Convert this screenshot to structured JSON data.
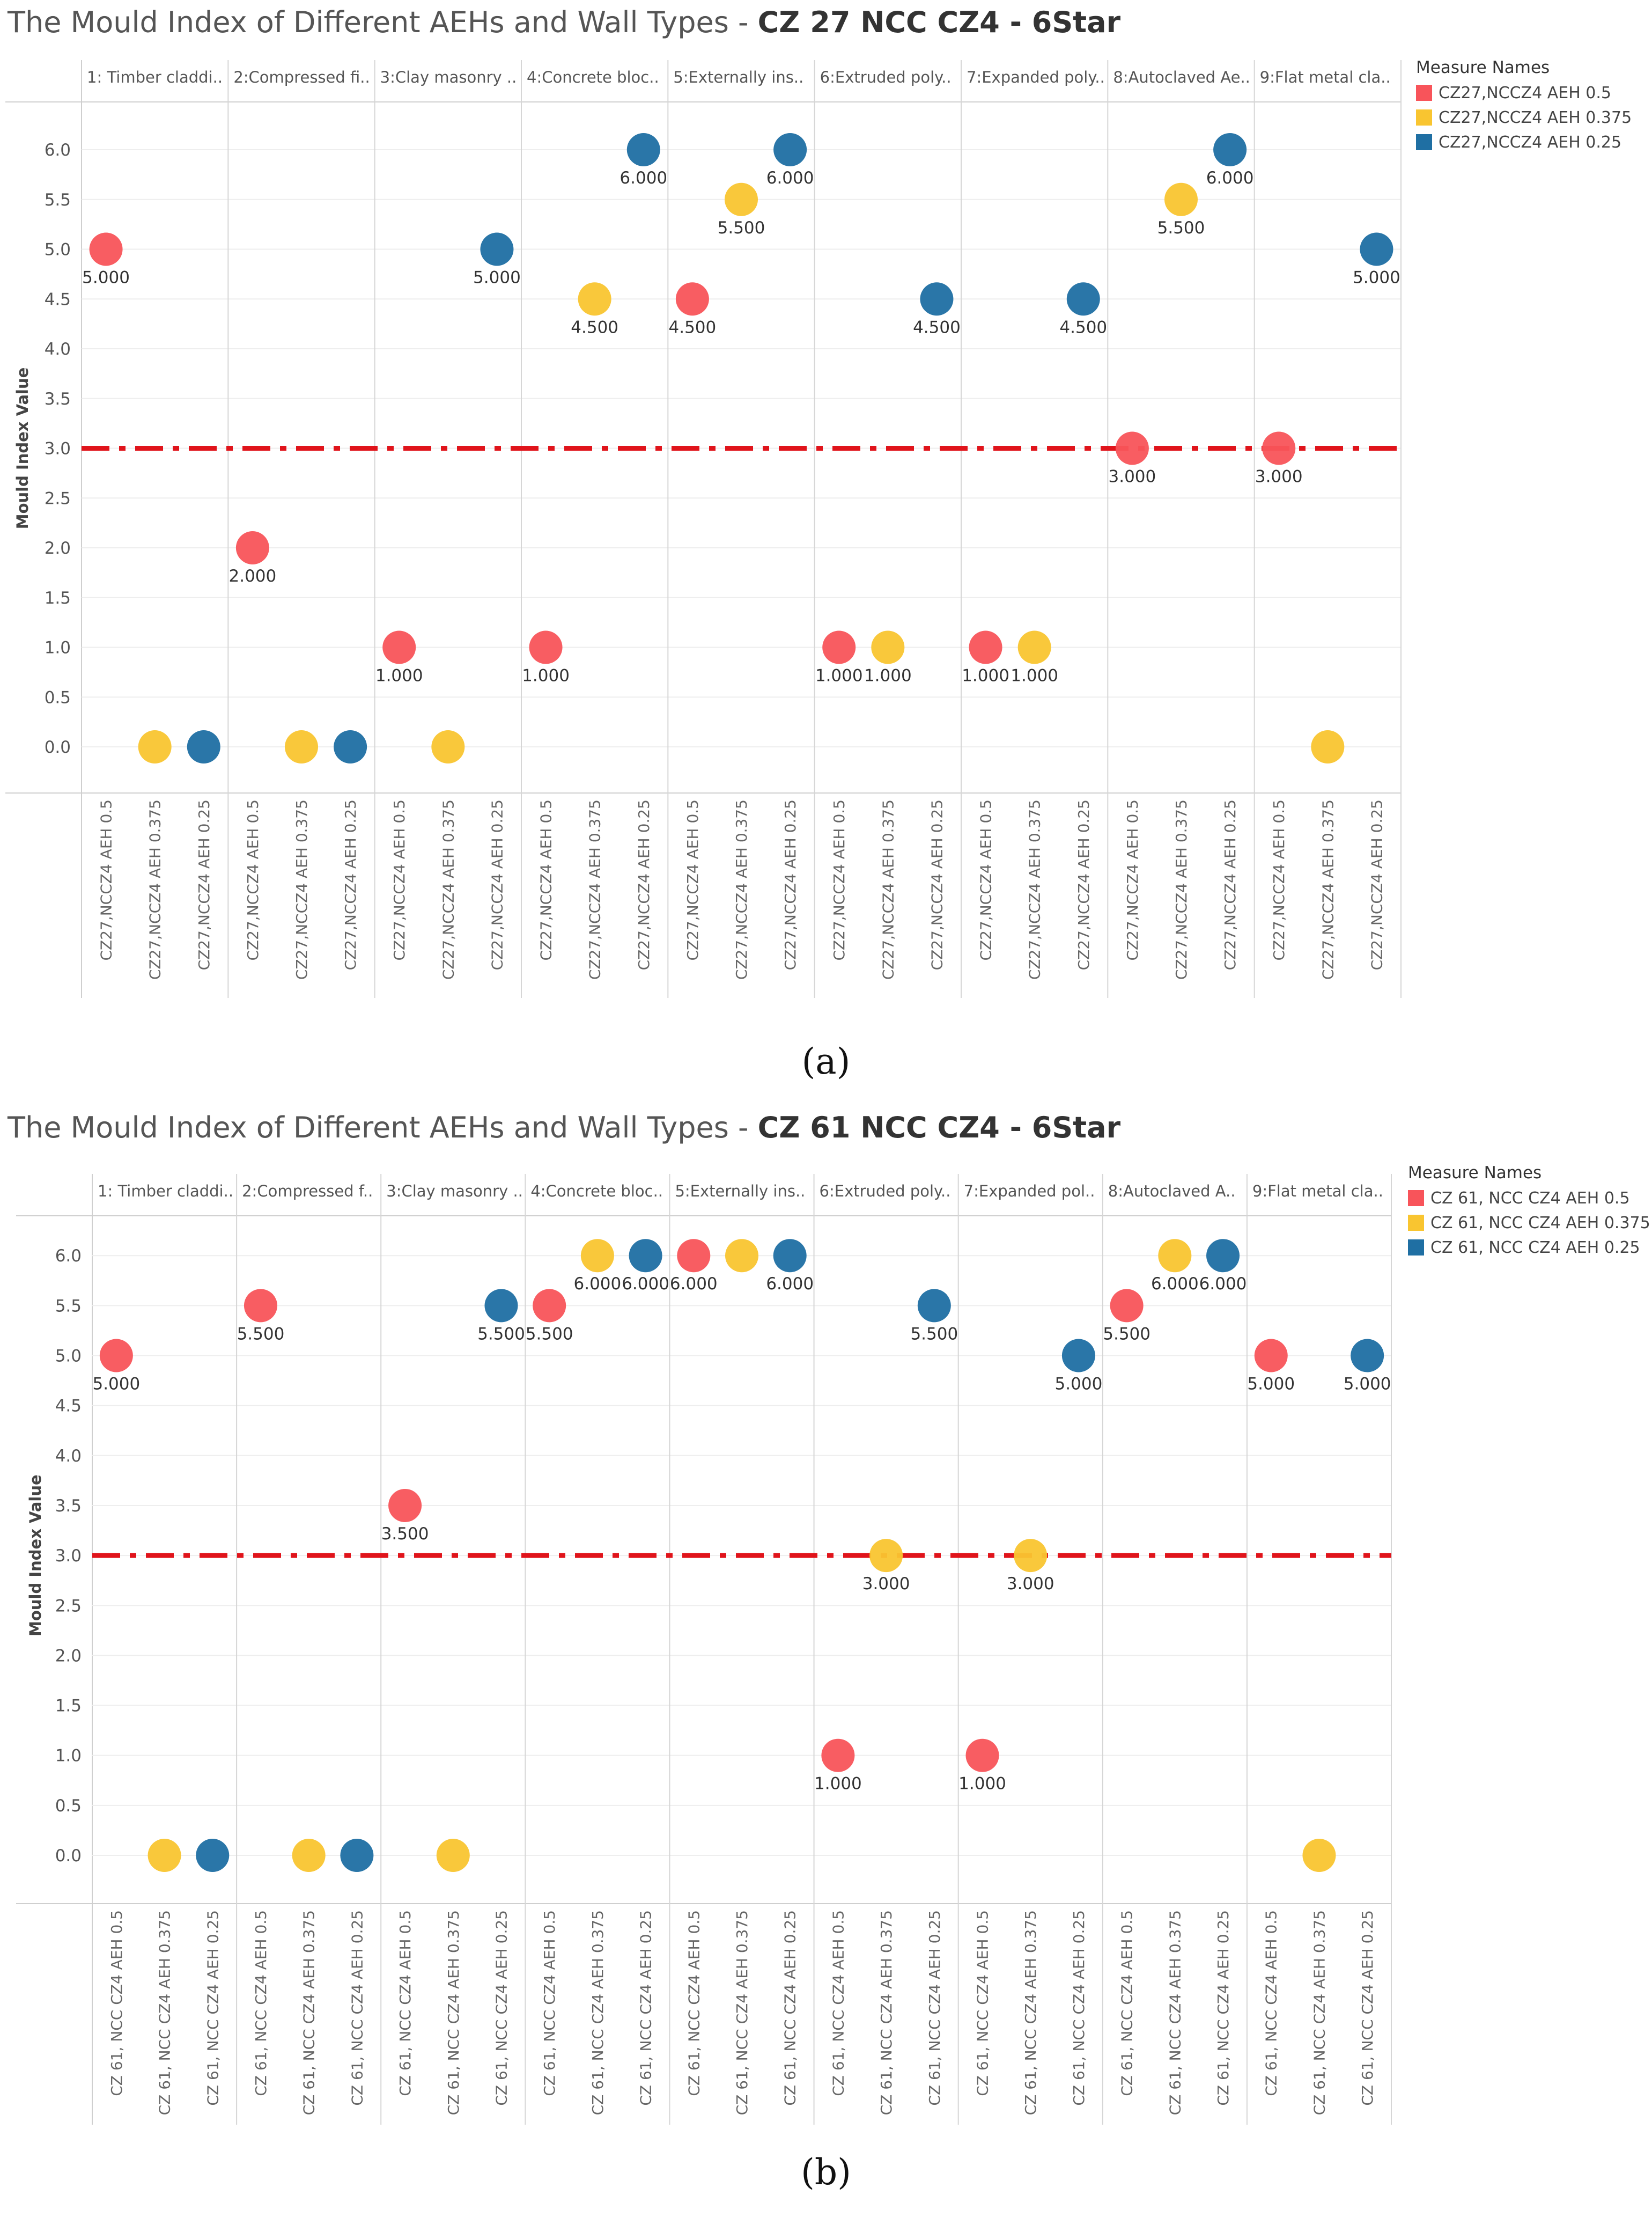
{
  "chart_data": [
    {
      "type": "scatter",
      "title_prefix": "The Mould Index of Different AEHs and Wall Types - ",
      "title_bold": "CZ 27 NCC CZ4 - 6Star",
      "panel_label": "(a)",
      "ylabel": "Mould Index Value",
      "ylim": [
        -0.5,
        6.5
      ],
      "yticks": [
        "0.0",
        "0.5",
        "1.0",
        "1.5",
        "2.0",
        "2.5",
        "3.0",
        "3.5",
        "4.0",
        "4.5",
        "5.0",
        "5.5",
        "6.0"
      ],
      "threshold": 3.0,
      "legend_title": "Measure Names",
      "series": [
        {
          "name": "CZ27,NCCZ4 AEH 0.5",
          "tick": "CZ27,NCCZ4 AEH 0.5",
          "color": "#F8545A"
        },
        {
          "name": "CZ27,NCCZ4 AEH 0.375",
          "tick": "CZ27,NCCZ4 AEH 0.375",
          "color": "#F9C530"
        },
        {
          "name": "CZ27,NCCZ4 AEH 0.25",
          "tick": "CZ27,NCCZ4 AEH 0.25",
          "color": "#1F6FA3"
        }
      ],
      "groups": [
        {
          "label": "1: Timber claddi..",
          "values": [
            5.0,
            0.0,
            0.0
          ],
          "labels": [
            "5.000",
            "",
            ""
          ]
        },
        {
          "label": "2:Compressed fi..",
          "values": [
            2.0,
            0.0,
            0.0
          ],
          "labels": [
            "2.000",
            "",
            ""
          ]
        },
        {
          "label": "3:Clay masonry ..",
          "values": [
            1.0,
            0.0,
            5.0
          ],
          "labels": [
            "1.000",
            "",
            "5.000"
          ]
        },
        {
          "label": "4:Concrete bloc..",
          "values": [
            1.0,
            4.5,
            6.0
          ],
          "labels": [
            "1.000",
            "4.500",
            "6.000"
          ]
        },
        {
          "label": "5:Externally ins..",
          "values": [
            4.5,
            5.5,
            6.0
          ],
          "labels": [
            "4.500",
            "5.500",
            "6.000"
          ]
        },
        {
          "label": "6:Extruded poly..",
          "values": [
            1.0,
            1.0,
            4.5
          ],
          "labels": [
            "1.000",
            "1.000",
            "4.500"
          ]
        },
        {
          "label": "7:Expanded poly..",
          "values": [
            1.0,
            1.0,
            4.5
          ],
          "labels": [
            "1.000",
            "1.000",
            "4.500"
          ]
        },
        {
          "label": "8:Autoclaved Ae..",
          "values": [
            3.0,
            5.5,
            6.0
          ],
          "labels": [
            "3.000",
            "5.500",
            "6.000"
          ]
        },
        {
          "label": "9:Flat metal cla..",
          "values": [
            3.0,
            0.0,
            5.0
          ],
          "labels": [
            "3.000",
            "",
            "5.000"
          ]
        }
      ]
    },
    {
      "type": "scatter",
      "title_prefix": "The Mould Index of Different AEHs and Wall Types - ",
      "title_bold": "CZ 61 NCC CZ4 - 6Star",
      "panel_label": "(b)",
      "ylabel": "Mould Index Value",
      "ylim": [
        -0.5,
        6.5
      ],
      "yticks": [
        "0.0",
        "0.5",
        "1.0",
        "1.5",
        "2.0",
        "2.5",
        "3.0",
        "3.5",
        "4.0",
        "4.5",
        "5.0",
        "5.5",
        "6.0"
      ],
      "threshold": 3.0,
      "legend_title": "Measure Names",
      "series": [
        {
          "name": "CZ 61, NCC CZ4 AEH 0.5",
          "tick": "CZ 61, NCC CZ4 AEH 0.5",
          "color": "#F8545A"
        },
        {
          "name": "CZ 61, NCC CZ4 AEH 0.375",
          "tick": "CZ 61, NCC CZ4 AEH 0.375",
          "color": "#F9C530"
        },
        {
          "name": "CZ 61, NCC CZ4 AEH 0.25",
          "tick": "CZ 61, NCC CZ4 AEH 0.25",
          "color": "#1F6FA3"
        }
      ],
      "groups": [
        {
          "label": "1: Timber claddi..",
          "values": [
            5.0,
            0.0,
            0.0
          ],
          "labels": [
            "5.000",
            "",
            ""
          ]
        },
        {
          "label": "2:Compressed f..",
          "values": [
            5.5,
            0.0,
            0.0
          ],
          "labels": [
            "5.500",
            "",
            ""
          ]
        },
        {
          "label": "3:Clay masonry ..",
          "values": [
            3.5,
            0.0,
            5.5
          ],
          "labels": [
            "3.500",
            "",
            "5.500"
          ]
        },
        {
          "label": "4:Concrete bloc..",
          "values": [
            5.5,
            6.0,
            6.0
          ],
          "labels": [
            "5.500",
            "6.000",
            "6.000"
          ]
        },
        {
          "label": "5:Externally ins..",
          "values": [
            6.0,
            6.0,
            6.0
          ],
          "labels": [
            "6.000",
            "",
            "6.000"
          ]
        },
        {
          "label": "6:Extruded poly..",
          "values": [
            1.0,
            3.0,
            5.5
          ],
          "labels": [
            "1.000",
            "3.000",
            "5.500"
          ]
        },
        {
          "label": "7:Expanded pol..",
          "values": [
            1.0,
            3.0,
            5.0
          ],
          "labels": [
            "1.000",
            "3.000",
            "5.000"
          ]
        },
        {
          "label": "8:Autoclaved A..",
          "values": [
            5.5,
            6.0,
            6.0
          ],
          "labels": [
            "5.500",
            "6.000",
            "6.000"
          ]
        },
        {
          "label": "9:Flat metal cla..",
          "values": [
            5.0,
            0.0,
            5.0
          ],
          "labels": [
            "5.000",
            "",
            "5.000"
          ]
        }
      ]
    }
  ]
}
